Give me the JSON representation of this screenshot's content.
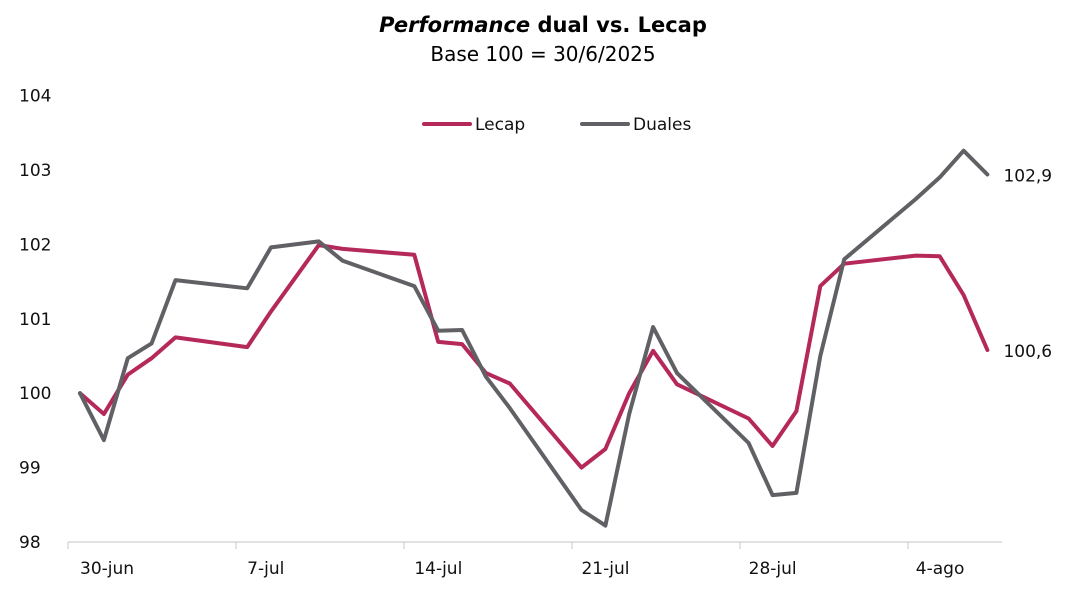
{
  "chart_data": {
    "type": "line",
    "title_emphasis": "Performance",
    "title_rest": " dual vs. Lecap",
    "subtitle": "Base 100 = 30/6/2025",
    "ylim": [
      98,
      104
    ],
    "yticks": [
      "98",
      "99",
      "100",
      "101",
      "102",
      "103",
      "104"
    ],
    "xticks": [
      {
        "label": "30-jun",
        "day": 0
      },
      {
        "label": "7-jul",
        "day": 7
      },
      {
        "label": "14-jul",
        "day": 14
      },
      {
        "label": "21-jul",
        "day": 21
      },
      {
        "label": "28-jul",
        "day": 28
      },
      {
        "label": "4-ago",
        "day": 35
      }
    ],
    "x_days": [
      0,
      1,
      2,
      3,
      4,
      7,
      8,
      10,
      11,
      14,
      15,
      16,
      17,
      18,
      21,
      22,
      23,
      24,
      25,
      28,
      29,
      30,
      31,
      32,
      35,
      36,
      37,
      38
    ],
    "legend": "top-center",
    "grid": false,
    "series": [
      {
        "name": "Lecap",
        "color": "#B5285A",
        "values": [
          100.0,
          99.72,
          100.25,
          100.47,
          100.75,
          100.62,
          101.1,
          101.99,
          101.94,
          101.86,
          100.69,
          100.66,
          100.27,
          100.13,
          99.0,
          99.25,
          100.0,
          100.57,
          100.12,
          99.66,
          99.29,
          99.76,
          101.44,
          101.74,
          101.85,
          101.84,
          101.32,
          100.58
        ],
        "end_label": "100,6"
      },
      {
        "name": "Duales",
        "color": "#616064",
        "values": [
          100.0,
          99.37,
          100.47,
          100.67,
          101.52,
          101.41,
          101.96,
          102.04,
          101.78,
          101.44,
          100.84,
          100.85,
          100.22,
          99.8,
          98.43,
          98.22,
          99.72,
          100.89,
          100.27,
          99.33,
          98.63,
          98.66,
          100.5,
          101.8,
          102.61,
          102.9,
          103.26,
          102.94
        ],
        "end_label": "102,9"
      }
    ]
  }
}
